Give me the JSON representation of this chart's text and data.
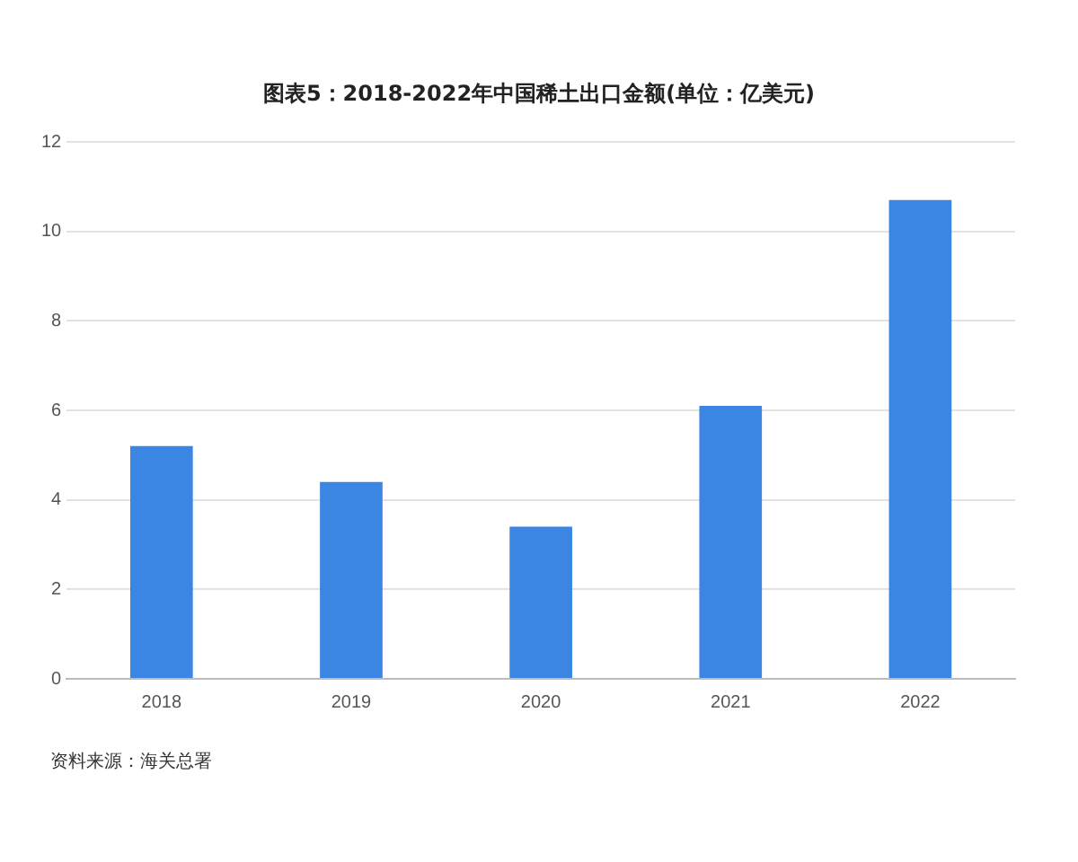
{
  "chart_data": {
    "type": "bar",
    "title": "图表5：2018-2022年中国稀土出口金额(单位：亿美元)",
    "categories": [
      "2018",
      "2019",
      "2020",
      "2021",
      "2022"
    ],
    "values": [
      5.2,
      4.4,
      3.4,
      6.1,
      10.7
    ],
    "color": "#3b86e3",
    "ylim": [
      0,
      12
    ],
    "yticks": [
      0,
      2,
      4,
      6,
      8,
      10,
      12
    ],
    "grid": "y",
    "annotations": [
      "资料来源：海关总署"
    ]
  }
}
